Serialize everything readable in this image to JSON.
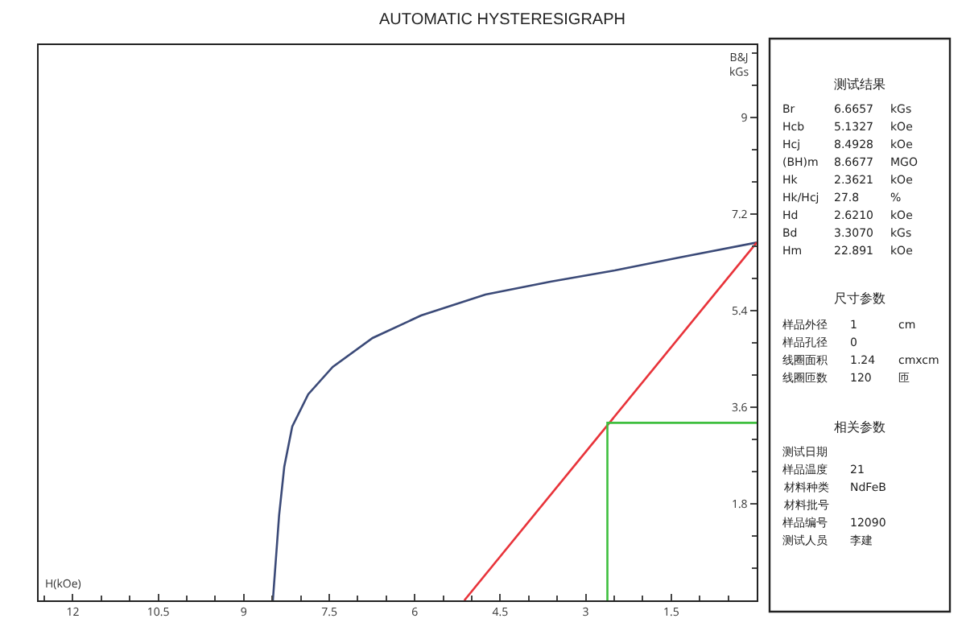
{
  "chart_data": {
    "type": "line",
    "title": "AUTOMATIC HYSTERESIGRAPH",
    "xlabel": "H(kOe)",
    "ylabel": "B&J\nkGs",
    "xlim": [
      12.6,
      0
    ],
    "xticks": [
      12,
      10.5,
      9,
      7.5,
      6,
      4.5,
      3,
      1.5
    ],
    "ylim": [
      0,
      10.35
    ],
    "yticks": [
      1.8,
      3.6,
      5.4,
      7.2,
      9
    ],
    "grid": false,
    "marker": "none",
    "line_style": "solid",
    "series": [
      {
        "color": "#3b4a78",
        "x": [
          0,
          1.36,
          2.49,
          3.62,
          4.76,
          5.89,
          6.74,
          7.44,
          7.87,
          8.15,
          8.29,
          8.38,
          8.49
        ],
        "values": [
          6.67,
          6.39,
          6.15,
          5.94,
          5.7,
          5.31,
          4.89,
          4.35,
          3.84,
          3.24,
          2.49,
          1.59,
          0
        ]
      },
      {
        "color": "#e8333a",
        "x": [
          0,
          5.13
        ],
        "values": [
          6.67,
          0
        ]
      },
      {
        "color": "#3fbf3f",
        "x": [
          2.62,
          2.62,
          0
        ],
        "values": [
          0,
          3.31,
          3.31
        ]
      }
    ],
    "annotations": [
      "测试结果",
      "Br  6.6657  kGs",
      "Hcb  5.1327  kOe",
      "Hcj  8.4928  kOe",
      "(BH)m  8.6677  MGO",
      "Hk  2.3621  kOe",
      "Hk/Hcj  27.8  %",
      "Hd  2.6210  kOe",
      "Bd  3.3070  kGs",
      "Hm  22.891  kOe",
      "尺寸参数",
      "样品外径  1  cm",
      "样品孔径  0",
      "线圈面积  1.24  cmxcm",
      "线圈匝数  120  匝",
      "相关参数",
      "测试日期",
      "样品温度  21",
      "材料种类  NdFeB",
      "材料批号",
      "样品编号  12090",
      "测试人员  李建"
    ]
  }
}
